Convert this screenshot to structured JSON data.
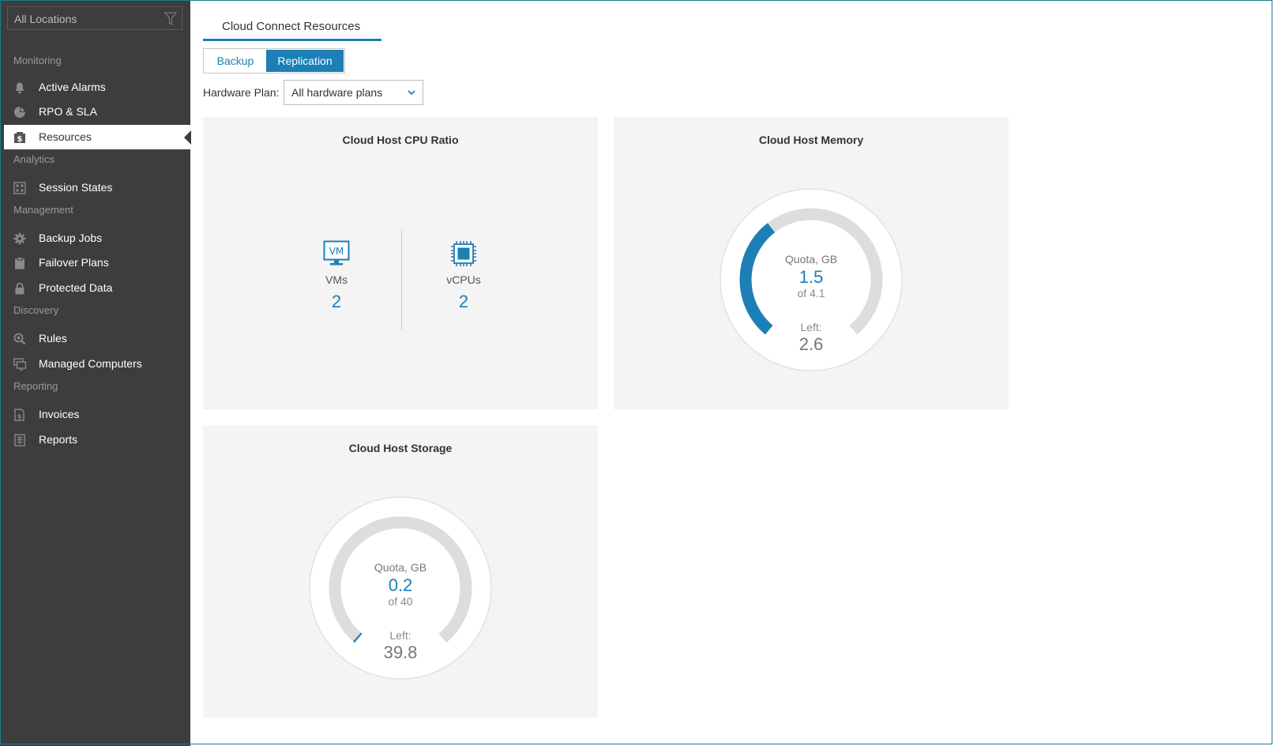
{
  "sidebar": {
    "location_filter": "All Locations",
    "sections": {
      "monitoring": "Monitoring",
      "analytics": "Analytics",
      "management": "Management",
      "discovery": "Discovery",
      "reporting": "Reporting"
    },
    "items": {
      "active_alarms": "Active Alarms",
      "rpo_sla": "RPO & SLA",
      "resources": "Resources",
      "session_states": "Session States",
      "backup_jobs": "Backup Jobs",
      "failover_plans": "Failover Plans",
      "protected_data": "Protected Data",
      "rules": "Rules",
      "managed_computers": "Managed Computers",
      "invoices": "Invoices",
      "reports": "Reports"
    },
    "active_item": "resources"
  },
  "main": {
    "title": "Cloud Connect Resources",
    "tabs": {
      "backup": "Backup",
      "replication": "Replication",
      "active": "replication"
    },
    "hardware_plan": {
      "label": "Hardware Plan:",
      "value": "All hardware plans"
    }
  },
  "cpu_panel": {
    "title": "Cloud Host CPU Ratio",
    "vm_icon_text": "VM",
    "vms_label": "VMs",
    "vms_value": "2",
    "vcpus_label": "vCPUs",
    "vcpus_value": "2"
  },
  "memory_panel": {
    "title": "Cloud Host Memory",
    "quota_label": "Quota, GB",
    "used": "1.5",
    "of_text": "of 4.1",
    "left_label": "Left:",
    "left_value": "2.6",
    "used_fraction": 0.366
  },
  "storage_panel": {
    "title": "Cloud Host Storage",
    "quota_label": "Quota, GB",
    "used": "0.2",
    "of_text": "of 40",
    "left_label": "Left:",
    "left_value": "39.8",
    "used_fraction": 0.005
  },
  "colors": {
    "accent": "#1c7fb5",
    "sidebar_bg": "#3d3d3d",
    "panel_bg": "#f4f4f4",
    "gauge_track": "#dddddd"
  },
  "icons": {
    "filter": "filter-icon",
    "active_alarms": "bell-icon",
    "rpo_sla": "pie-icon",
    "resources": "dollar-box-icon",
    "session_states": "grid-icon",
    "backup_jobs": "gear-icon",
    "failover_plans": "clipboard-icon",
    "protected_data": "lock-icon",
    "rules": "search-gear-icon",
    "managed_computers": "computers-icon",
    "invoices": "invoice-icon",
    "reports": "report-icon",
    "dropdown": "chevron-down-icon",
    "vm": "vm-monitor-icon",
    "vcpu": "chip-icon"
  }
}
